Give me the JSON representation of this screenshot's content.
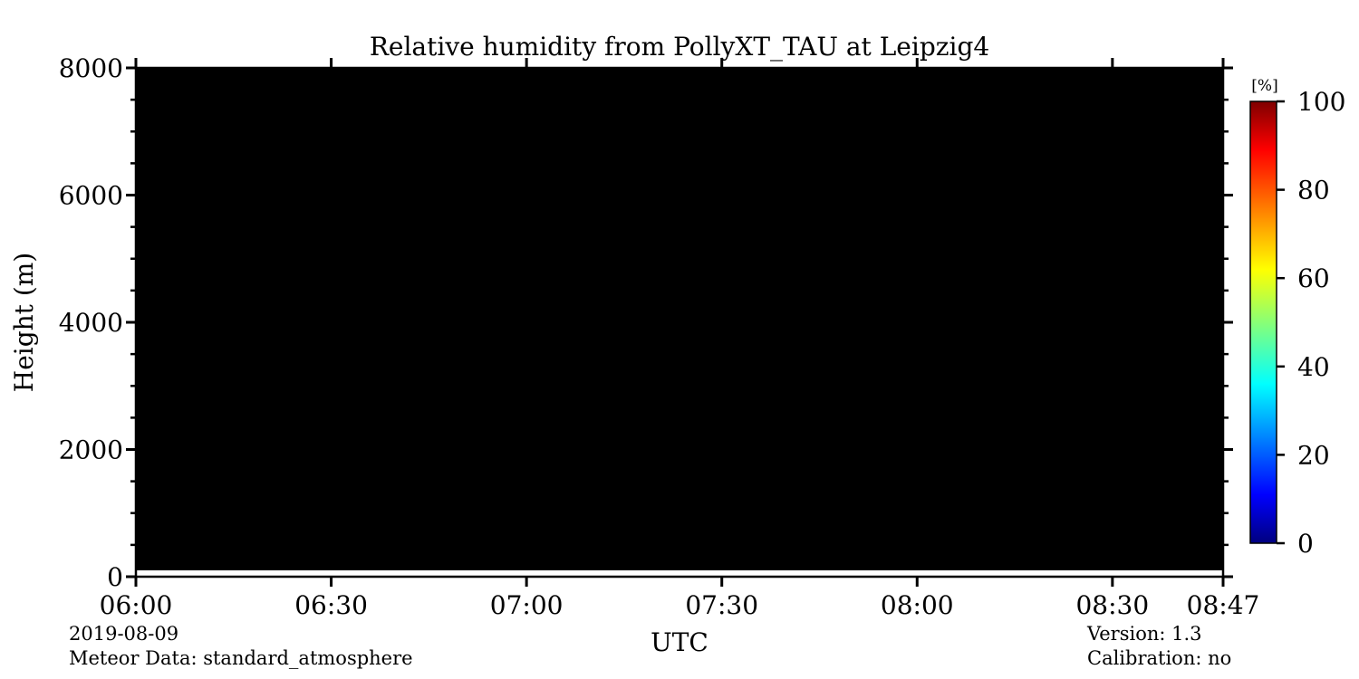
{
  "chart_data": {
    "type": "heatmap",
    "title": "Relative humidity from PollyXT_TAU at Leipzig4",
    "xlabel": "UTC",
    "ylabel": "Height (m)",
    "x_ticks": [
      "06:00",
      "06:30",
      "07:00",
      "07:30",
      "08:00",
      "08:30",
      "08:47"
    ],
    "x_tick_minutes": [
      0,
      30,
      60,
      90,
      120,
      150,
      167
    ],
    "xlim_minutes": [
      0,
      167
    ],
    "y_ticks": [
      0,
      2000,
      4000,
      6000,
      8000
    ],
    "ylim": [
      0,
      8000
    ],
    "y_minor_step": 500,
    "fill_from_height": 100,
    "fill_color": "#000000",
    "colorbar": {
      "label": "[%]",
      "ticks": [
        0,
        20,
        40,
        60,
        80,
        100
      ],
      "range": [
        0,
        100
      ],
      "colormap": "jet"
    }
  },
  "footer": {
    "date": "2019-08-09",
    "meteor": "Meteor Data: standard_atmosphere",
    "version": "Version: 1.3",
    "calibration": "Calibration: no"
  }
}
